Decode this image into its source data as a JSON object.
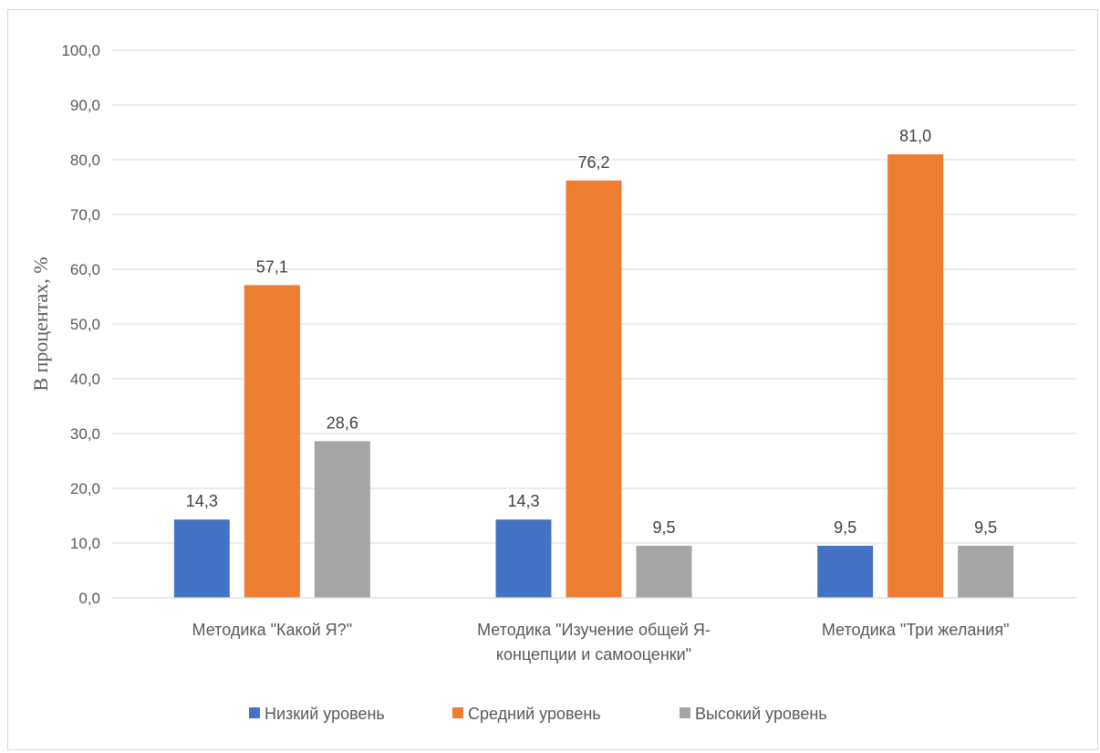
{
  "chart_data": {
    "type": "bar",
    "title": "",
    "xlabel": "",
    "ylabel": "В процентах, %",
    "ylim": [
      0,
      100
    ],
    "yticks": [
      "0,0",
      "10,0",
      "20,0",
      "30,0",
      "40,0",
      "50,0",
      "60,0",
      "70,0",
      "80,0",
      "90,0",
      "100,0"
    ],
    "categories": [
      [
        "Методика \"Какой Я?\""
      ],
      [
        "Методика \"Изучение общей Я-",
        "концепции и самооценки\""
      ],
      [
        "Методика \"Три желания\""
      ]
    ],
    "series": [
      {
        "name": "Низкий уровень",
        "color": "#4472C4",
        "values": [
          14.3,
          14.3,
          9.5
        ],
        "labels": [
          "14,3",
          "14,3",
          "9,5"
        ]
      },
      {
        "name": "Средний уровень",
        "color": "#ED7D31",
        "values": [
          57.1,
          76.2,
          81.0
        ],
        "labels": [
          "57,1",
          "76,2",
          "81,0"
        ]
      },
      {
        "name": "Высокий уровень",
        "color": "#A5A5A5",
        "values": [
          28.6,
          9.5,
          9.5
        ],
        "labels": [
          "28,6",
          "9,5",
          "9,5"
        ]
      }
    ],
    "grid": true,
    "legend": "bottom"
  }
}
